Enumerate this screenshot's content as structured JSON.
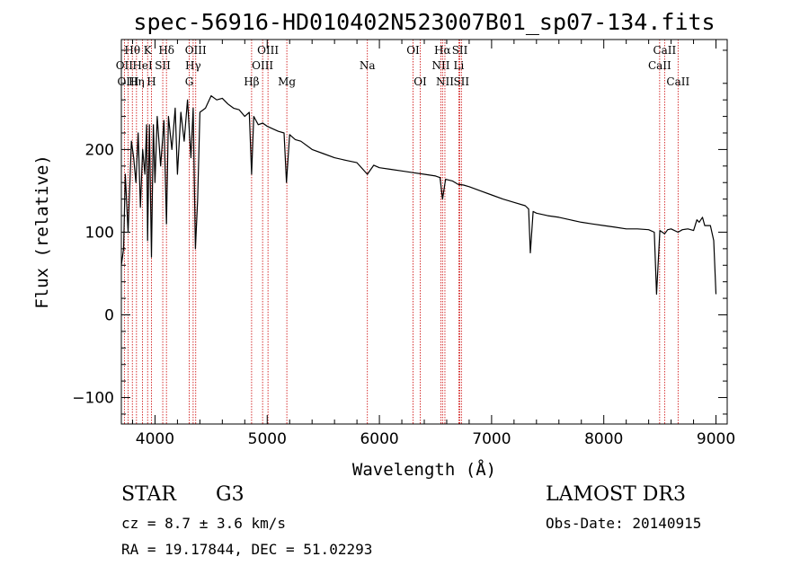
{
  "chart_data": {
    "type": "line",
    "title": "spec-56916-HD010402N523007B01_sp07-134.fits",
    "xlabel": "Wavelength (Å)",
    "ylabel": "Flux (relative)",
    "xlim": [
      3700,
      9100
    ],
    "ylim": [
      -132,
      333
    ],
    "x_ticks": [
      4000,
      5000,
      6000,
      7000,
      8000,
      9000
    ],
    "y_ticks": [
      -100,
      0,
      100,
      200
    ],
    "series": [
      {
        "name": "flux",
        "x": [
          3700,
          3720,
          3735,
          3760,
          3790,
          3810,
          3830,
          3850,
          3870,
          3890,
          3910,
          3925,
          3934,
          3950,
          3968,
          3985,
          4000,
          4020,
          4050,
          4080,
          4102,
          4120,
          4150,
          4180,
          4200,
          4230,
          4260,
          4290,
          4320,
          4340,
          4360,
          4380,
          4400,
          4450,
          4500,
          4550,
          4600,
          4650,
          4700,
          4750,
          4800,
          4840,
          4861,
          4880,
          4920,
          4960,
          5000,
          5050,
          5100,
          5150,
          5172,
          5200,
          5250,
          5300,
          5400,
          5500,
          5600,
          5700,
          5800,
          5893,
          5950,
          6000,
          6100,
          6200,
          6300,
          6400,
          6500,
          6540,
          6563,
          6590,
          6650,
          6700,
          6750,
          6800,
          6900,
          7000,
          7100,
          7200,
          7300,
          7330,
          7345,
          7370,
          7400,
          7500,
          7600,
          7700,
          7800,
          7900,
          8000,
          8100,
          8200,
          8300,
          8400,
          8450,
          8470,
          8500,
          8542,
          8570,
          8600,
          8662,
          8700,
          8750,
          8800,
          8830,
          8850,
          8880,
          8900,
          8950,
          8980,
          9000
        ],
        "y": [
          60,
          80,
          170,
          100,
          210,
          190,
          160,
          220,
          130,
          200,
          170,
          230,
          90,
          230,
          70,
          230,
          160,
          240,
          180,
          235,
          110,
          240,
          200,
          250,
          170,
          245,
          210,
          260,
          190,
          250,
          80,
          140,
          245,
          250,
          265,
          260,
          262,
          255,
          250,
          248,
          240,
          245,
          170,
          240,
          230,
          232,
          228,
          225,
          222,
          220,
          160,
          218,
          212,
          210,
          200,
          195,
          190,
          187,
          184,
          170,
          181,
          178,
          176,
          174,
          172,
          170,
          168,
          166,
          140,
          164,
          162,
          158,
          157,
          155,
          150,
          145,
          140,
          136,
          132,
          128,
          75,
          125,
          123,
          120,
          118,
          115,
          112,
          110,
          108,
          106,
          104,
          104,
          103,
          100,
          25,
          102,
          98,
          103,
          104,
          100,
          103,
          104,
          102,
          115,
          112,
          118,
          108,
          108,
          90,
          25
        ]
      }
    ],
    "spectral_lines": [
      {
        "label": "Hθ",
        "wl": 3798,
        "row": 0
      },
      {
        "label": "OII",
        "wl": 3727,
        "row": 1
      },
      {
        "label": "OIII",
        "wl": 3760,
        "row": 2
      },
      {
        "label": "K",
        "wl": 3934,
        "row": 0
      },
      {
        "label": "HeI",
        "wl": 3889,
        "row": 1
      },
      {
        "label": "Hη",
        "wl": 3835,
        "row": 2
      },
      {
        "label": "Hδ",
        "wl": 4102,
        "row": 0
      },
      {
        "label": "SII",
        "wl": 4069,
        "row": 1
      },
      {
        "label": "H",
        "wl": 3968,
        "row": 2
      },
      {
        "label": "OIII",
        "wl": 4363,
        "row": 0
      },
      {
        "label": "Hγ",
        "wl": 4340,
        "row": 1
      },
      {
        "label": "G",
        "wl": 4305,
        "row": 2
      },
      {
        "label": "OIII",
        "wl": 5007,
        "row": 0
      },
      {
        "label": "OIII",
        "wl": 4959,
        "row": 1
      },
      {
        "label": "Hβ",
        "wl": 4861,
        "row": 2
      },
      {
        "label": "Mg",
        "wl": 5175,
        "row": 2
      },
      {
        "label": "Na",
        "wl": 5893,
        "row": 1
      },
      {
        "label": "OI",
        "wl": 6300,
        "row": 0
      },
      {
        "label": "OI",
        "wl": 6364,
        "row": 2
      },
      {
        "label": "Hα",
        "wl": 6563,
        "row": 0
      },
      {
        "label": "NII",
        "wl": 6548,
        "row": 1
      },
      {
        "label": "NII",
        "wl": 6584,
        "row": 2
      },
      {
        "label": "SII",
        "wl": 6717,
        "row": 0
      },
      {
        "label": "Li",
        "wl": 6708,
        "row": 1
      },
      {
        "label": "SII",
        "wl": 6731,
        "row": 2
      },
      {
        "label": "CaII",
        "wl": 8542,
        "row": 0
      },
      {
        "label": "CaII",
        "wl": 8498,
        "row": 1
      },
      {
        "label": "CaII",
        "wl": 8662,
        "row": 2
      }
    ]
  },
  "info": {
    "object_class": "STAR",
    "subclass": "G3",
    "survey": "LAMOST DR3",
    "cz": "cz = 8.7 ± 3.6 km/s",
    "obs_date": "Obs-Date: 20140915",
    "radec": "RA =  19.17844, DEC =  51.02293"
  },
  "colors": {
    "spectrum": "#000000",
    "line_marker": "#cc0000",
    "axes": "#000000"
  }
}
